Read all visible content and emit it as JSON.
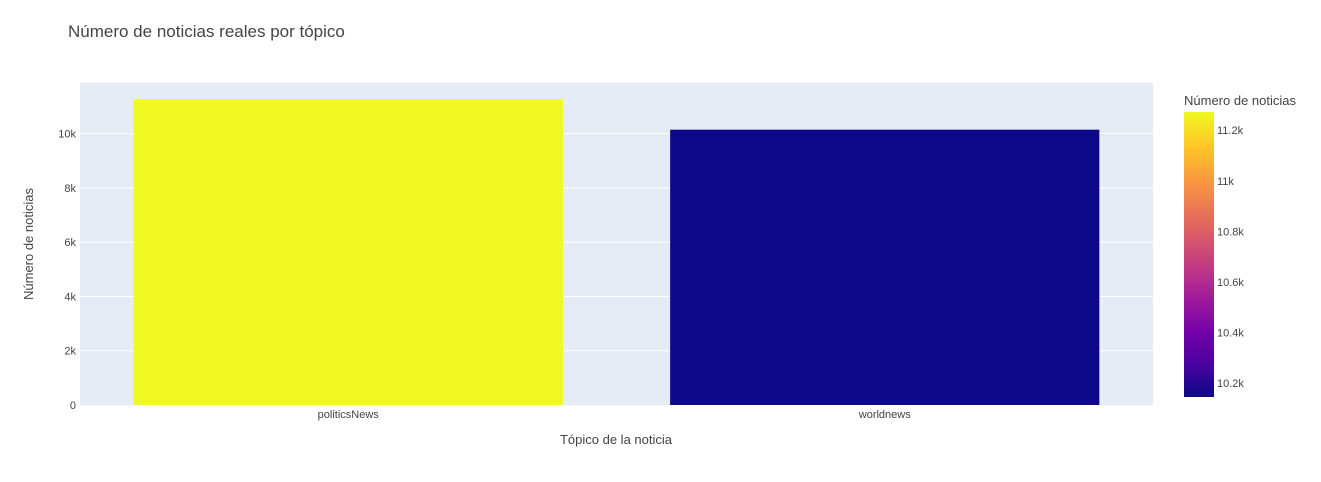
{
  "chart_data": {
    "type": "bar",
    "title": "Número de noticias reales por tópico",
    "xlabel": "Tópico de la noticia",
    "ylabel": "Número de noticias",
    "categories": [
      "politicsNews",
      "worldnews"
    ],
    "values": [
      11272,
      10145
    ],
    "ylim": [
      0,
      11865
    ],
    "yticks": [
      0,
      2000,
      4000,
      6000,
      8000,
      10000
    ],
    "ytick_labels": [
      "0",
      "2k",
      "4k",
      "6k",
      "8k",
      "10k"
    ],
    "grid": true,
    "plot_background": "#E5ECF6",
    "colorbar": {
      "title": "Número de noticias",
      "range": [
        10145,
        11272
      ],
      "ticks": [
        10200,
        10400,
        10600,
        10800,
        11000,
        11200
      ],
      "tick_labels": [
        "10.2k",
        "10.4k",
        "10.6k",
        "10.8k",
        "11k",
        "11.2k"
      ],
      "colorscale": [
        "#0d0887",
        "#46039f",
        "#7201a8",
        "#9c179e",
        "#bd3786",
        "#d8576b",
        "#ed7953",
        "#fb9f3a",
        "#fdca26",
        "#f0f921"
      ]
    }
  }
}
